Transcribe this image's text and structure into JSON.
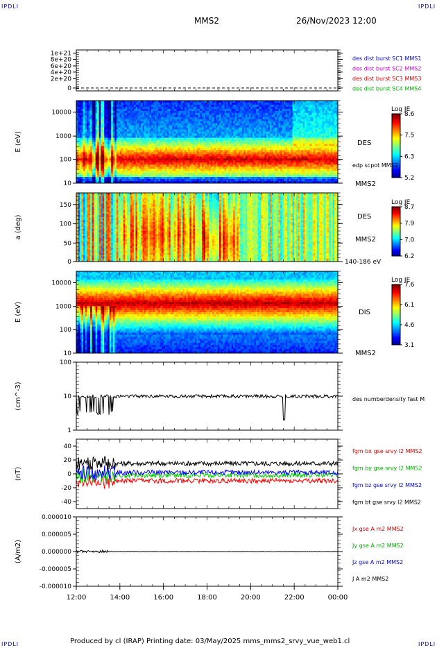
{
  "corner_label": "IPDLI",
  "header": {
    "spacecraft": "MMS2",
    "datetime": "26/Nov/2023 12:00"
  },
  "footer": "Produced by cl (IRAP)   Printing date: 03/May/2025   mms_mms2_srvy_vue_web1.cl",
  "chart_data": [
    {
      "id": "panel1",
      "type": "line",
      "yticks": [
        "1e+21",
        "8e+20",
        "6e+20",
        "4e+20",
        "2e+20",
        "0"
      ],
      "ylim": [
        0,
        1.1e+21
      ],
      "series": [
        {
          "name": "des dist burst SC1 MMS1",
          "values": []
        }
      ],
      "legend": [
        {
          "text": "des dist burst SC1 MMS1",
          "color": "#0000cc"
        },
        {
          "text": "des dist burst SC2 MMS2",
          "color": "#cc00cc"
        },
        {
          "text": "des dist burst SC3 MMS3",
          "color": "#cc0000"
        },
        {
          "text": "des dist burst SC4 MMS4",
          "color": "#00aa00"
        }
      ]
    },
    {
      "id": "panel2",
      "type": "heatmap",
      "ylabel": "E (eV)",
      "yscale": "log",
      "ylim": [
        10,
        30000
      ],
      "yticks": [
        "10000",
        "1000",
        "100",
        "10"
      ],
      "right_labels": [
        "DES",
        "edp scpot MMS2",
        "MMS2"
      ],
      "colorbar": {
        "title": "Log JE",
        "ticks": [
          "8.6",
          "7.5",
          "6.3",
          "5.2"
        ],
        "range": [
          5.2,
          8.6
        ]
      }
    },
    {
      "id": "panel3",
      "type": "heatmap",
      "ylabel": "a (deg)",
      "ylim": [
        0,
        180
      ],
      "yticks": [
        "150",
        "100",
        "50",
        "0"
      ],
      "right_labels": [
        "DES",
        "MMS2",
        "140-186 eV"
      ],
      "colorbar": {
        "title": "Log JE",
        "ticks": [
          "8.7",
          "7.9",
          "7.0",
          "6.2"
        ],
        "range": [
          6.2,
          8.7
        ]
      }
    },
    {
      "id": "panel4",
      "type": "heatmap",
      "ylabel": "E (eV)",
      "yscale": "log",
      "ylim": [
        10,
        30000
      ],
      "yticks": [
        "10000",
        "1000",
        "100",
        "10"
      ],
      "right_labels": [
        "DIS",
        "MMS2"
      ],
      "colorbar": {
        "title": "Log JE",
        "ticks": [
          "7.6",
          "6.1",
          "4.6",
          "3.1"
        ],
        "range": [
          3.1,
          7.6
        ]
      }
    },
    {
      "id": "panel5",
      "type": "line",
      "ylabel": "(cm^-3)",
      "yscale": "log",
      "ylim": [
        1,
        100
      ],
      "yticks": [
        "100",
        "10",
        "1"
      ],
      "series": [
        {
          "name": "des numberdensity fast M",
          "color": "#000000",
          "baseline": 10
        }
      ],
      "legend": [
        {
          "text": "des numberdensity fast M",
          "color": "#000000"
        }
      ]
    },
    {
      "id": "panel6",
      "type": "line",
      "ylabel": "(nT)",
      "ylim": [
        -50,
        50
      ],
      "yticks": [
        "40",
        "20",
        "0",
        "-20",
        "-40"
      ],
      "series": [
        {
          "name": "fgm bx gse srvy l2 MMS2",
          "color": "#ff0000",
          "baseline": -10
        },
        {
          "name": "fgm by gse srvy l2 MMS2",
          "color": "#00cc00",
          "baseline": -2
        },
        {
          "name": "fgm bz gse srvy l2 MMS2",
          "color": "#0000ff",
          "baseline": 2
        },
        {
          "name": "fgm bt gse srvy l2 MMS2",
          "color": "#000000",
          "baseline": 15
        }
      ],
      "legend": [
        {
          "text": "fgm bx gse srvy l2 MMS2",
          "color": "#cc0000"
        },
        {
          "text": "fgm by gse srvy l2 MMS2",
          "color": "#00aa00"
        },
        {
          "text": "fgm bz gse srvy l2 MMS2",
          "color": "#0000cc"
        },
        {
          "text": "fgm bt gse srvy l2 MMS2",
          "color": "#000000"
        }
      ]
    },
    {
      "id": "panel7",
      "type": "line",
      "ylabel": "(A/m2)",
      "ylim": [
        -1e-05,
        1e-05
      ],
      "yticks": [
        "0.000010",
        "0.000005",
        "0.000000",
        "-0.000005",
        "-0.000010"
      ],
      "series": [
        {
          "name": "J A m2 MMS2",
          "color": "#000000",
          "baseline": 0
        }
      ],
      "legend": [
        {
          "text": "Jx gse A m2 MMS2",
          "color": "#cc0000"
        },
        {
          "text": "Jy gse A m2 MMS2",
          "color": "#00aa00"
        },
        {
          "text": "Jz gse A m2 MMS2",
          "color": "#0000cc"
        },
        {
          "text": "J A m2 MMS2",
          "color": "#000000"
        }
      ]
    }
  ],
  "xaxis": {
    "ticks": [
      "12:00",
      "14:00",
      "16:00",
      "18:00",
      "20:00",
      "22:00",
      "00:00"
    ],
    "range_hours": [
      12,
      24
    ]
  }
}
